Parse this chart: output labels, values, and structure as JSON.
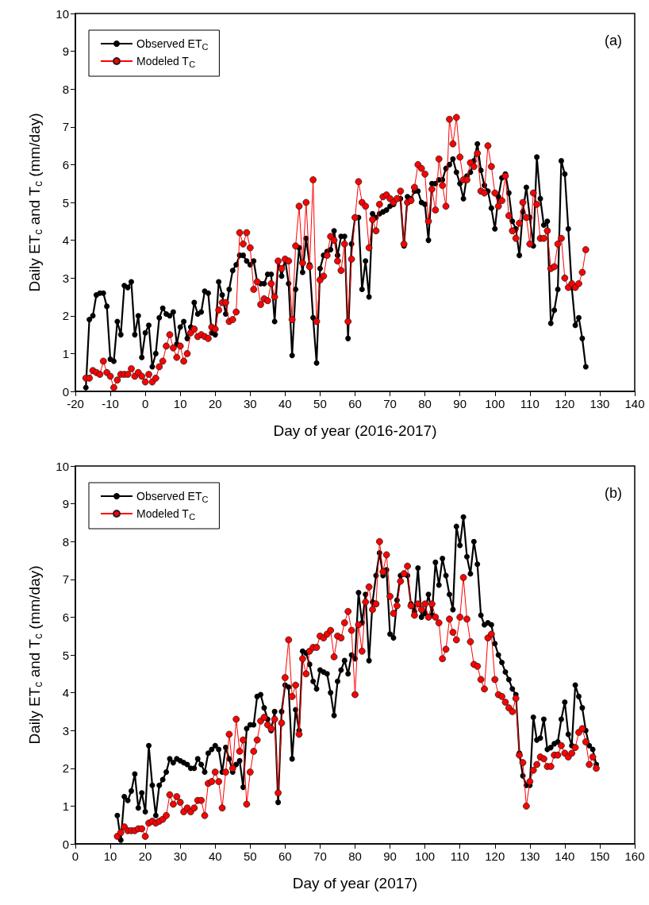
{
  "chart_data": [
    {
      "type": "line",
      "annotations": [
        "(a)"
      ],
      "xlabel": "Day of year (2016-2017)",
      "ylabel": "Daily ET$_{c}$ and T$_{c}$ (mm/day)",
      "x": [
        -17,
        -16,
        -15,
        -14,
        -13,
        -12,
        -11,
        -10,
        -9,
        -8,
        -7,
        -6,
        -5,
        -4,
        -3,
        -2,
        -1,
        0,
        1,
        2,
        3,
        4,
        5,
        6,
        7,
        8,
        9,
        10,
        11,
        12,
        13,
        14,
        15,
        16,
        17,
        18,
        19,
        20,
        21,
        22,
        23,
        24,
        25,
        26,
        27,
        28,
        29,
        30,
        31,
        32,
        33,
        34,
        35,
        36,
        37,
        38,
        39,
        40,
        41,
        42,
        43,
        44,
        45,
        46,
        47,
        48,
        49,
        50,
        51,
        52,
        53,
        54,
        55,
        56,
        57,
        58,
        59,
        60,
        61,
        62,
        63,
        64,
        65,
        66,
        67,
        68,
        69,
        70,
        71,
        72,
        73,
        74,
        75,
        76,
        77,
        78,
        79,
        80,
        81,
        82,
        83,
        84,
        85,
        86,
        87,
        88,
        89,
        90,
        91,
        92,
        93,
        94,
        95,
        96,
        97,
        98,
        99,
        100,
        101,
        102,
        103,
        104,
        105,
        106,
        107,
        108,
        109,
        110,
        111,
        112,
        113,
        114,
        115,
        116,
        117,
        118,
        119,
        120,
        121,
        122,
        123,
        124,
        125,
        126
      ],
      "series": [
        {
          "name": "Observed ET$_{C}$",
          "color": "#000000",
          "values": [
            0.1,
            1.9,
            2.0,
            2.55,
            2.6,
            2.6,
            2.25,
            0.85,
            0.8,
            1.85,
            1.5,
            2.8,
            2.75,
            2.9,
            1.5,
            2.0,
            0.9,
            1.55,
            1.75,
            0.65,
            1.0,
            1.95,
            2.2,
            2.05,
            2.0,
            2.1,
            1.25,
            1.7,
            1.85,
            1.4,
            1.7,
            2.35,
            2.05,
            2.1,
            2.65,
            2.6,
            1.55,
            1.5,
            2.9,
            2.55,
            2.05,
            2.7,
            3.2,
            3.35,
            3.6,
            3.6,
            3.45,
            3.35,
            3.45,
            2.9,
            2.85,
            2.85,
            3.1,
            3.1,
            1.85,
            3.45,
            3.05,
            3.5,
            2.85,
            0.95,
            2.7,
            3.8,
            3.15,
            4.05,
            3.35,
            1.95,
            0.75,
            3.25,
            3.6,
            3.7,
            3.75,
            4.25,
            3.6,
            4.1,
            4.1,
            1.4,
            3.9,
            4.6,
            4.6,
            2.7,
            3.45,
            2.5,
            4.7,
            4.6,
            4.7,
            4.75,
            4.8,
            4.9,
            4.95,
            5.1,
            5.1,
            3.85,
            5.15,
            5.1,
            5.3,
            5.3,
            5.0,
            4.95,
            4.0,
            5.5,
            5.5,
            5.6,
            5.6,
            5.9,
            6.0,
            6.15,
            5.8,
            5.5,
            5.1,
            5.7,
            5.8,
            6.1,
            6.55,
            5.85,
            5.45,
            5.3,
            4.85,
            4.3,
            5.15,
            5.65,
            5.75,
            5.25,
            4.5,
            4.3,
            3.6,
            4.75,
            5.4,
            4.6,
            3.85,
            6.2,
            5.1,
            4.4,
            4.5,
            1.8,
            2.15,
            2.7,
            6.1,
            5.75,
            4.3,
            2.75,
            1.75,
            1.95,
            1.4,
            0.65
          ]
        },
        {
          "name": "Modeled T$_{C}$",
          "color": "#ff0000",
          "values": [
            0.35,
            0.35,
            0.55,
            0.5,
            0.45,
            0.8,
            0.5,
            0.4,
            0.1,
            0.3,
            0.45,
            0.45,
            0.45,
            0.6,
            0.4,
            0.5,
            0.4,
            0.25,
            0.45,
            0.25,
            0.35,
            0.65,
            0.8,
            1.2,
            1.5,
            1.15,
            0.9,
            1.2,
            0.8,
            1.0,
            1.55,
            1.65,
            1.45,
            1.5,
            1.45,
            1.4,
            1.7,
            1.65,
            2.15,
            2.35,
            2.35,
            1.85,
            1.9,
            2.1,
            4.2,
            3.9,
            4.2,
            3.8,
            2.7,
            2.9,
            2.3,
            2.45,
            2.4,
            2.85,
            2.5,
            3.45,
            3.25,
            3.5,
            3.45,
            1.9,
            3.85,
            4.9,
            3.4,
            5.0,
            3.3,
            5.6,
            1.85,
            2.95,
            3.05,
            3.6,
            4.1,
            4.0,
            3.45,
            3.2,
            3.9,
            1.85,
            3.5,
            4.6,
            5.55,
            5.0,
            4.9,
            3.8,
            4.55,
            4.25,
            4.95,
            5.15,
            5.2,
            5.1,
            5.0,
            5.1,
            5.3,
            3.9,
            5.0,
            5.05,
            5.4,
            6.0,
            5.9,
            5.75,
            4.5,
            5.35,
            4.8,
            6.15,
            5.45,
            4.9,
            7.2,
            6.55,
            7.25,
            6.2,
            5.6,
            5.6,
            6.05,
            5.95,
            6.3,
            5.3,
            5.25,
            6.5,
            5.95,
            5.25,
            4.9,
            5.05,
            5.7,
            4.65,
            4.25,
            4.05,
            4.45,
            5.0,
            4.6,
            3.9,
            5.25,
            4.95,
            4.05,
            4.05,
            4.25,
            3.25,
            3.3,
            3.9,
            4.05,
            3.0,
            2.75,
            2.85,
            2.75,
            2.85,
            3.15,
            3.75
          ]
        }
      ],
      "xlim": [
        -20,
        140
      ],
      "xticks": [
        -20,
        -10,
        0,
        10,
        20,
        30,
        40,
        50,
        60,
        70,
        80,
        90,
        100,
        110,
        120,
        130,
        140
      ],
      "ylim": [
        0,
        10
      ],
      "yticks": [
        0,
        1,
        2,
        3,
        4,
        5,
        6,
        7,
        8,
        9,
        10
      ],
      "grid": false,
      "legend": "top left",
      "marker": "circle",
      "line_style": "solid"
    },
    {
      "type": "line",
      "annotations": [
        "(b)"
      ],
      "xlabel": "Day of year (2017)",
      "ylabel": "Daily ET$_{c}$ and T$_{c}$ (mm/day)",
      "x": [
        12,
        13,
        14,
        15,
        16,
        17,
        18,
        19,
        20,
        21,
        22,
        23,
        24,
        25,
        26,
        27,
        28,
        29,
        30,
        31,
        32,
        33,
        34,
        35,
        36,
        37,
        38,
        39,
        40,
        41,
        42,
        43,
        44,
        45,
        46,
        47,
        48,
        49,
        50,
        51,
        52,
        53,
        54,
        55,
        56,
        57,
        58,
        59,
        60,
        61,
        62,
        63,
        64,
        65,
        66,
        67,
        68,
        69,
        70,
        71,
        72,
        73,
        74,
        75,
        76,
        77,
        78,
        79,
        80,
        81,
        82,
        83,
        84,
        85,
        86,
        87,
        88,
        89,
        90,
        91,
        92,
        93,
        94,
        95,
        96,
        97,
        98,
        99,
        100,
        101,
        102,
        103,
        104,
        105,
        106,
        107,
        108,
        109,
        110,
        111,
        112,
        113,
        114,
        115,
        116,
        117,
        118,
        119,
        120,
        121,
        122,
        123,
        124,
        125,
        126,
        127,
        128,
        129,
        130,
        131,
        132,
        133,
        134,
        135,
        136,
        137,
        138,
        139,
        140,
        141,
        142,
        143,
        144,
        145,
        146,
        147,
        148,
        149
      ],
      "series": [
        {
          "name": "Observed ET$_{C}$",
          "color": "#000000",
          "values": [
            0.75,
            0.1,
            1.25,
            1.15,
            1.4,
            1.85,
            0.95,
            1.35,
            0.85,
            2.6,
            1.55,
            0.75,
            1.55,
            1.7,
            1.9,
            2.25,
            2.15,
            2.25,
            2.2,
            2.15,
            2.1,
            2.0,
            2.0,
            2.25,
            2.1,
            1.9,
            2.4,
            2.5,
            2.6,
            2.5,
            1.9,
            2.55,
            2.25,
            1.9,
            2.1,
            2.2,
            1.5,
            3.05,
            3.15,
            3.15,
            3.9,
            3.95,
            3.6,
            3.3,
            3.0,
            3.5,
            1.1,
            3.5,
            4.2,
            4.15,
            2.25,
            3.55,
            3.0,
            5.1,
            5.05,
            4.75,
            4.3,
            4.1,
            4.6,
            4.55,
            4.5,
            4.0,
            3.4,
            4.3,
            4.6,
            4.85,
            4.5,
            5.0,
            4.9,
            6.65,
            5.85,
            6.6,
            4.85,
            6.4,
            7.1,
            7.7,
            7.1,
            7.25,
            5.55,
            5.45,
            6.45,
            7.1,
            7.15,
            7.1,
            6.35,
            6.15,
            7.3,
            6.0,
            6.1,
            6.6,
            6.05,
            7.45,
            6.85,
            7.55,
            7.1,
            6.6,
            6.2,
            8.4,
            7.9,
            8.65,
            7.6,
            7.15,
            8.0,
            7.4,
            6.05,
            5.8,
            5.85,
            5.8,
            5.3,
            5.0,
            4.8,
            4.55,
            4.35,
            4.1,
            3.95,
            2.4,
            1.8,
            1.55,
            1.55,
            3.35,
            2.75,
            2.8,
            3.3,
            2.5,
            2.55,
            2.65,
            2.7,
            3.3,
            3.75,
            2.9,
            2.6,
            4.2,
            3.9,
            3.6,
            3.0,
            2.6,
            2.5,
            2.1
          ]
        },
        {
          "name": "Modeled T$_{C}$",
          "color": "#ff0000",
          "values": [
            0.2,
            0.3,
            0.45,
            0.35,
            0.35,
            0.35,
            0.4,
            0.4,
            0.2,
            0.55,
            0.6,
            0.55,
            0.6,
            0.65,
            0.75,
            1.3,
            1.05,
            1.25,
            1.1,
            0.85,
            0.95,
            0.85,
            0.95,
            1.15,
            1.15,
            0.75,
            1.6,
            1.65,
            1.9,
            1.65,
            0.95,
            1.9,
            2.9,
            2.0,
            3.3,
            2.45,
            2.75,
            1.05,
            1.9,
            2.45,
            2.75,
            3.25,
            3.35,
            3.15,
            3.05,
            3.3,
            1.35,
            3.2,
            4.4,
            5.4,
            3.9,
            4.2,
            2.9,
            4.9,
            4.5,
            5.1,
            5.2,
            5.2,
            5.5,
            5.45,
            5.55,
            5.65,
            4.95,
            5.5,
            5.45,
            5.85,
            6.15,
            5.65,
            3.95,
            5.8,
            5.1,
            6.4,
            6.8,
            6.2,
            6.35,
            8.0,
            7.2,
            7.65,
            6.55,
            6.1,
            6.3,
            6.95,
            7.15,
            7.35,
            6.3,
            6.05,
            6.35,
            6.2,
            6.35,
            6.0,
            6.35,
            6.0,
            5.85,
            4.9,
            5.15,
            5.95,
            5.6,
            5.4,
            6.0,
            7.05,
            5.95,
            5.35,
            4.75,
            4.7,
            4.35,
            4.1,
            5.45,
            5.55,
            4.35,
            3.95,
            3.9,
            3.75,
            3.6,
            3.5,
            3.85,
            2.35,
            2.15,
            1.0,
            1.65,
            1.95,
            2.1,
            2.3,
            2.25,
            2.05,
            2.05,
            2.35,
            2.35,
            2.6,
            2.4,
            2.3,
            2.4,
            2.55,
            2.95,
            3.05,
            2.7,
            2.1,
            2.3,
            2.0
          ]
        }
      ],
      "xlim": [
        0,
        160
      ],
      "xticks": [
        0,
        10,
        20,
        30,
        40,
        50,
        60,
        70,
        80,
        90,
        100,
        110,
        120,
        130,
        140,
        150,
        160
      ],
      "ylim": [
        0,
        10
      ],
      "yticks": [
        0,
        1,
        2,
        3,
        4,
        5,
        6,
        7,
        8,
        9,
        10
      ],
      "grid": false,
      "legend": "top left",
      "marker": "circle",
      "line_style": "solid"
    }
  ]
}
